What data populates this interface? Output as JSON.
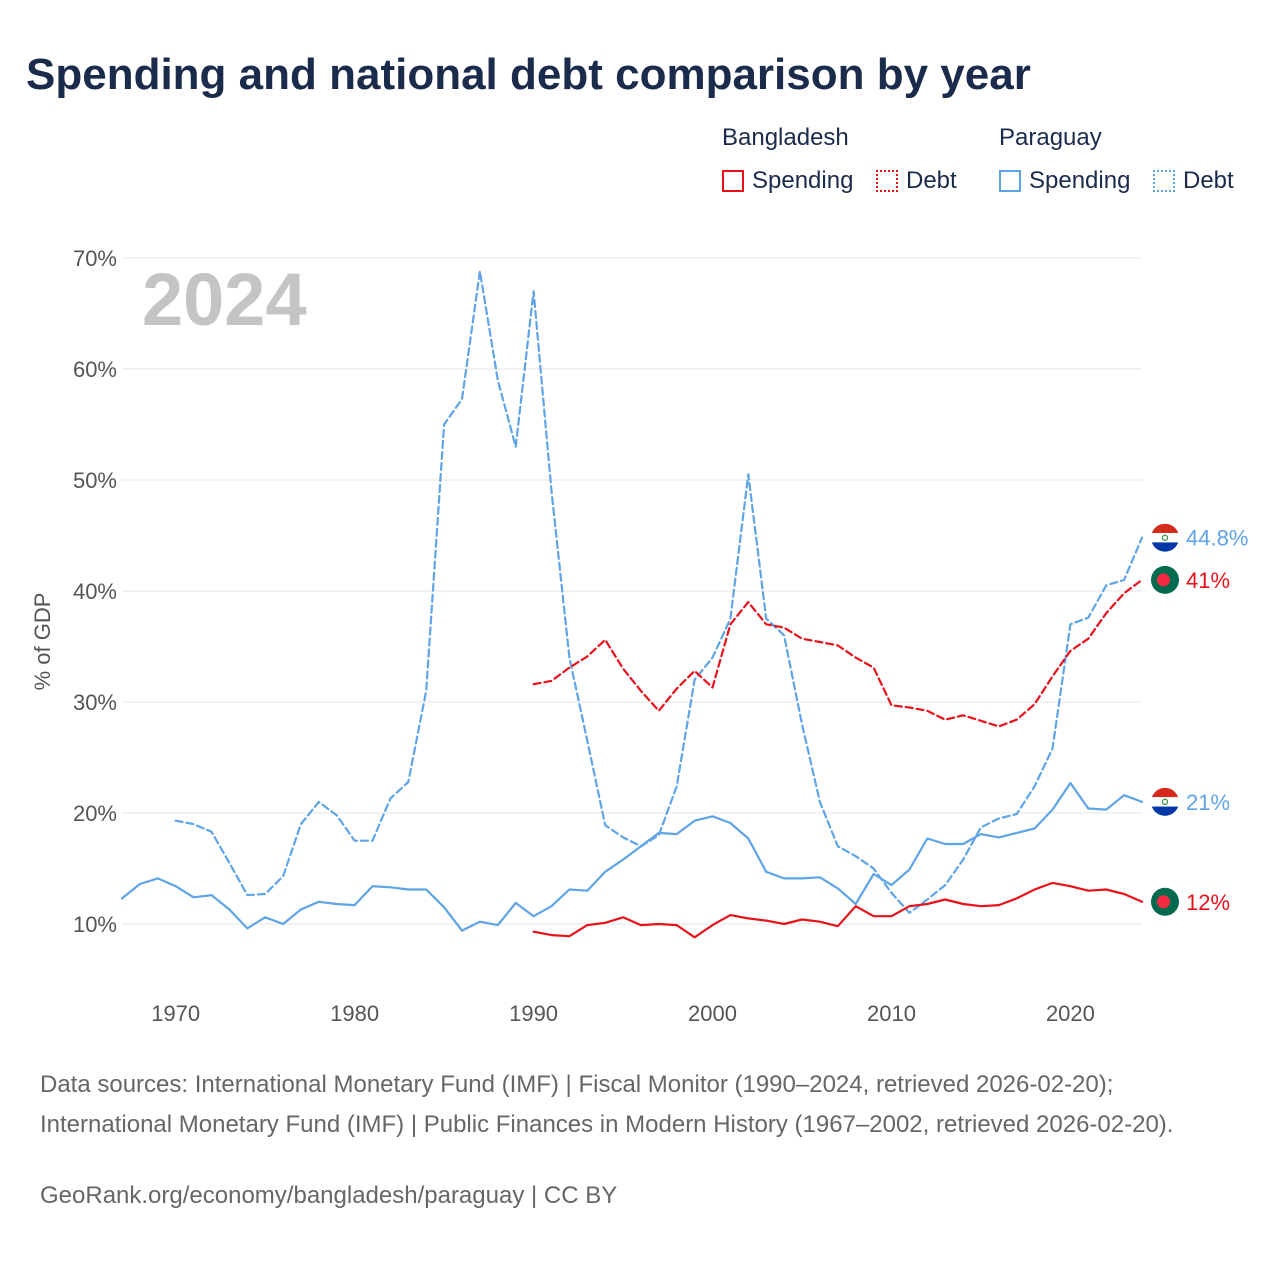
{
  "title": "Spending and national debt comparison by year",
  "legend": {
    "groups": [
      {
        "country": "Bangladesh",
        "color": "#e8111a",
        "items": [
          {
            "label": "Spending",
            "style": "solid"
          },
          {
            "label": "Debt",
            "style": "dotted"
          }
        ]
      },
      {
        "country": "Paraguay",
        "color": "#5ea4e6",
        "items": [
          {
            "label": "Spending",
            "style": "solid"
          },
          {
            "label": "Debt",
            "style": "dotted"
          }
        ]
      }
    ]
  },
  "chart_data": {
    "type": "line",
    "title": "Spending and national debt comparison by year",
    "watermark_year": "2024",
    "xlabel": "",
    "ylabel": "% of GDP",
    "xlim": [
      1967,
      2024
    ],
    "ylim": [
      4.5,
      70
    ],
    "x_ticks": [
      1970,
      1980,
      1990,
      2000,
      2010,
      2020
    ],
    "y_ticks": [
      10,
      20,
      30,
      40,
      50,
      60,
      70
    ],
    "y_tick_labels": [
      "10%",
      "20%",
      "30%",
      "40%",
      "50%",
      "60%",
      "70%"
    ],
    "grid": true,
    "series": [
      {
        "name": "Paraguay Debt",
        "country": "Paraguay",
        "measure": "Debt",
        "color": "#5ea4e6",
        "dash": "dashed",
        "end_label": "44.8%",
        "end_flag": "paraguay-flag",
        "x": [
          1970,
          1971,
          1972,
          1973,
          1974,
          1975,
          1976,
          1977,
          1978,
          1979,
          1980,
          1981,
          1982,
          1983,
          1984,
          1985,
          1986,
          1987,
          1988,
          1989,
          1990,
          1991,
          1992,
          1993,
          1994,
          1995,
          1996,
          1997,
          1998,
          1999,
          2000,
          2001,
          2002,
          2003,
          2004,
          2005,
          2006,
          2007,
          2008,
          2009,
          2010,
          2011,
          2012,
          2013,
          2014,
          2015,
          2016,
          2017,
          2018,
          2019,
          2020,
          2021,
          2022,
          2023,
          2024
        ],
        "values": [
          19.3,
          19,
          18.3,
          15.5,
          12.6,
          12.7,
          14.3,
          19,
          21,
          19.8,
          17.5,
          17.5,
          21.3,
          22.8,
          31,
          55,
          57.3,
          68.8,
          59,
          53,
          67,
          49,
          34,
          26.5,
          18.9,
          17.8,
          17,
          18,
          22.4,
          32,
          34,
          37.5,
          50.5,
          37.5,
          36,
          28,
          21,
          17,
          16.1,
          15,
          12.8,
          11,
          12.2,
          13.5,
          15.8,
          18.7,
          19.5,
          19.9,
          22.4,
          25.8,
          37,
          37.6,
          40.5,
          41,
          44.8
        ]
      },
      {
        "name": "Bangladesh Debt",
        "country": "Bangladesh",
        "measure": "Debt",
        "color": "#e8111a",
        "dash": "dashed",
        "end_label": "41%",
        "end_flag": "bangladesh-flag",
        "x": [
          1990,
          1991,
          1992,
          1993,
          1994,
          1995,
          1996,
          1997,
          1998,
          1999,
          2000,
          2001,
          2002,
          2003,
          2004,
          2005,
          2006,
          2007,
          2008,
          2009,
          2010,
          2011,
          2012,
          2013,
          2014,
          2015,
          2016,
          2017,
          2018,
          2019,
          2020,
          2021,
          2022,
          2023,
          2024
        ],
        "values": [
          31.6,
          31.9,
          33.1,
          34.1,
          35.6,
          33,
          31,
          29.2,
          31.2,
          32.8,
          31.3,
          37,
          39,
          37,
          36.7,
          35.7,
          35.4,
          35.1,
          34,
          33.1,
          29.7,
          29.5,
          29.2,
          28.4,
          28.8,
          28.3,
          27.8,
          28.4,
          29.8,
          32.3,
          34.6,
          35.7,
          38,
          39.8,
          41
        ]
      },
      {
        "name": "Paraguay Spending",
        "country": "Paraguay",
        "measure": "Spending",
        "color": "#5ea4e6",
        "dash": "solid",
        "end_label": "21%",
        "end_flag": "paraguay-flag",
        "x": [
          1967,
          1968,
          1969,
          1970,
          1971,
          1972,
          1973,
          1974,
          1975,
          1976,
          1977,
          1978,
          1979,
          1980,
          1981,
          1982,
          1983,
          1984,
          1985,
          1986,
          1987,
          1988,
          1989,
          1990,
          1991,
          1992,
          1993,
          1994,
          1995,
          1996,
          1997,
          1998,
          1999,
          2000,
          2001,
          2002,
          2003,
          2004,
          2005,
          2006,
          2007,
          2008,
          2009,
          2010,
          2011,
          2012,
          2013,
          2014,
          2015,
          2016,
          2017,
          2018,
          2019,
          2020,
          2021,
          2022,
          2023,
          2024
        ],
        "values": [
          12.3,
          13.6,
          14.1,
          13.4,
          12.4,
          12.6,
          11.3,
          9.6,
          10.6,
          10,
          11.3,
          12,
          11.8,
          11.7,
          13.4,
          13.3,
          13.1,
          13.1,
          11.5,
          9.4,
          10.2,
          9.9,
          11.9,
          10.7,
          11.6,
          13.1,
          13,
          14.7,
          15.8,
          17,
          18.2,
          18.1,
          19.3,
          19.7,
          19.1,
          17.7,
          14.7,
          14.1,
          14.1,
          14.2,
          13.2,
          11.8,
          14.5,
          13.5,
          14.9,
          17.7,
          17.2,
          17.2,
          18.1,
          17.8,
          18.2,
          18.6,
          20.3,
          22.7,
          20.4,
          20.3,
          21.6,
          21
        ]
      },
      {
        "name": "Bangladesh Spending",
        "country": "Bangladesh",
        "measure": "Spending",
        "color": "#e8111a",
        "dash": "solid",
        "end_label": "12%",
        "end_flag": "bangladesh-flag",
        "x": [
          1990,
          1991,
          1992,
          1993,
          1994,
          1995,
          1996,
          1997,
          1998,
          1999,
          2000,
          2001,
          2002,
          2003,
          2004,
          2005,
          2006,
          2007,
          2008,
          2009,
          2010,
          2011,
          2012,
          2013,
          2014,
          2015,
          2016,
          2017,
          2018,
          2019,
          2020,
          2021,
          2022,
          2023,
          2024
        ],
        "values": [
          9.3,
          9,
          8.9,
          9.9,
          10.1,
          10.6,
          9.9,
          10,
          9.9,
          8.8,
          9.9,
          10.8,
          10.5,
          10.3,
          10,
          10.4,
          10.2,
          9.8,
          11.6,
          10.7,
          10.7,
          11.6,
          11.8,
          12.2,
          11.8,
          11.6,
          11.7,
          12.3,
          13.1,
          13.7,
          13.4,
          13,
          13.1,
          12.7,
          12
        ]
      }
    ]
  },
  "source": "Data sources: International Monetary Fund (IMF) | Fiscal Monitor (1990–2024, retrieved 2026-02-20); International Monetary Fund (IMF) | Public Finances in Modern History (1967–2002, retrieved 2026-02-20).",
  "credit": "GeoRank.org/economy/bangladesh/paraguay | CC BY"
}
